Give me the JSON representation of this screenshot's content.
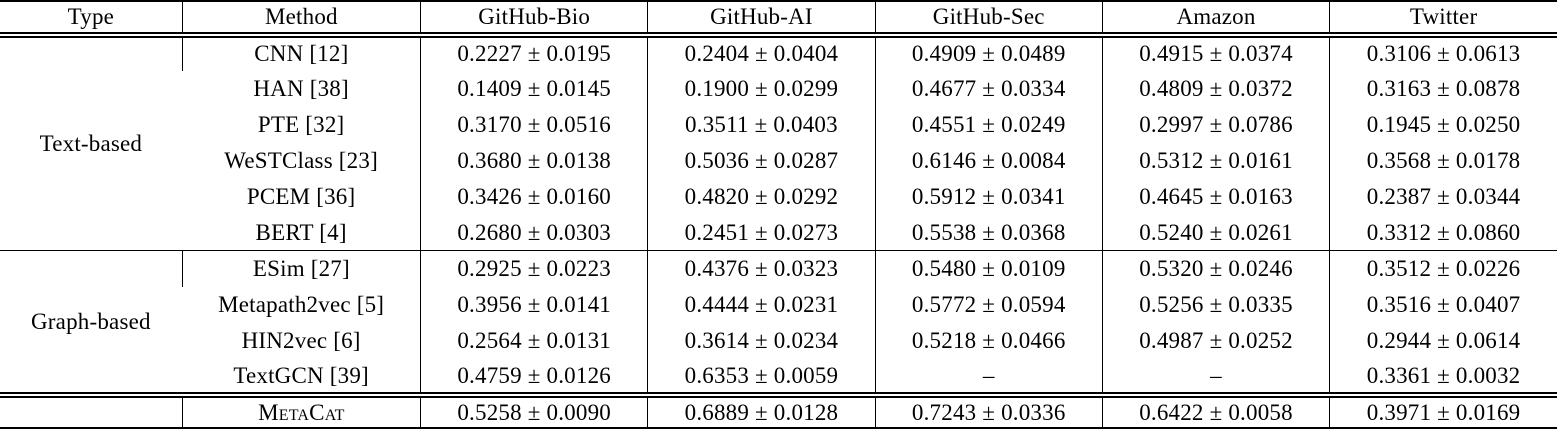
{
  "table": {
    "columns": [
      "Type",
      "Method",
      "GitHub-Bio",
      "GitHub-AI",
      "GitHub-Sec",
      "Amazon",
      "Twitter"
    ],
    "group_labels": [
      "Text-based",
      "Graph-based"
    ],
    "missing_value_symbol": "–",
    "colors": {
      "text": "#000000",
      "background": "#ffffff",
      "rule": "#000000"
    },
    "rows": [
      {
        "type": "Text-based",
        "method": "CNN [12]",
        "values": [
          "0.2227 ± 0.0195",
          "0.2404 ± 0.0404",
          "0.4909 ± 0.0489",
          "0.4915 ± 0.0374",
          "0.3106 ± 0.0613"
        ]
      },
      {
        "method": "HAN [38]",
        "values": [
          "0.1409 ± 0.0145",
          "0.1900 ± 0.0299",
          "0.4677 ± 0.0334",
          "0.4809 ± 0.0372",
          "0.3163 ± 0.0878"
        ]
      },
      {
        "method": "PTE [32]",
        "values": [
          "0.3170 ± 0.0516",
          "0.3511 ± 0.0403",
          "0.4551 ± 0.0249",
          "0.2997 ± 0.0786",
          "0.1945 ± 0.0250"
        ]
      },
      {
        "method": "WeSTClass [23]",
        "values": [
          "0.3680 ± 0.0138",
          "0.5036 ± 0.0287",
          "0.6146 ± 0.0084",
          "0.5312 ± 0.0161",
          "0.3568 ± 0.0178"
        ]
      },
      {
        "method": "PCEM [36]",
        "values": [
          "0.3426 ± 0.0160",
          "0.4820 ± 0.0292",
          "0.5912 ± 0.0341",
          "0.4645 ± 0.0163",
          "0.2387 ± 0.0344"
        ]
      },
      {
        "method": "BERT [4]",
        "values": [
          "0.2680 ± 0.0303",
          "0.2451 ± 0.0273",
          "0.5538 ± 0.0368",
          "0.5240 ± 0.0261",
          "0.3312 ± 0.0860"
        ]
      },
      {
        "type": "Graph-based",
        "method": "ESim [27]",
        "values": [
          "0.2925 ± 0.0223",
          "0.4376 ± 0.0323",
          "0.5480 ± 0.0109",
          "0.5320 ± 0.0246",
          "0.3512 ± 0.0226"
        ]
      },
      {
        "method": "Metapath2vec [5]",
        "values": [
          "0.3956 ± 0.0141",
          "0.4444 ± 0.0231",
          "0.5772 ± 0.0594",
          "0.5256 ± 0.0335",
          "0.3516 ± 0.0407"
        ]
      },
      {
        "method": "HIN2vec [6]",
        "values": [
          "0.2564 ± 0.0131",
          "0.3614 ± 0.0234",
          "0.5218 ± 0.0466",
          "0.4987 ± 0.0252",
          "0.2944 ± 0.0614"
        ]
      },
      {
        "method": "TextGCN [39]",
        "values": [
          "0.4759 ± 0.0126",
          "0.6353 ± 0.0059",
          "–",
          "–",
          "0.3361 ± 0.0032"
        ]
      },
      {
        "type": "",
        "method": "MetaCat",
        "values": [
          "0.5258 ± 0.0090",
          "0.6889 ± 0.0128",
          "0.7243 ± 0.0336",
          "0.6422 ± 0.0058",
          "0.3971 ± 0.0169"
        ]
      }
    ]
  }
}
